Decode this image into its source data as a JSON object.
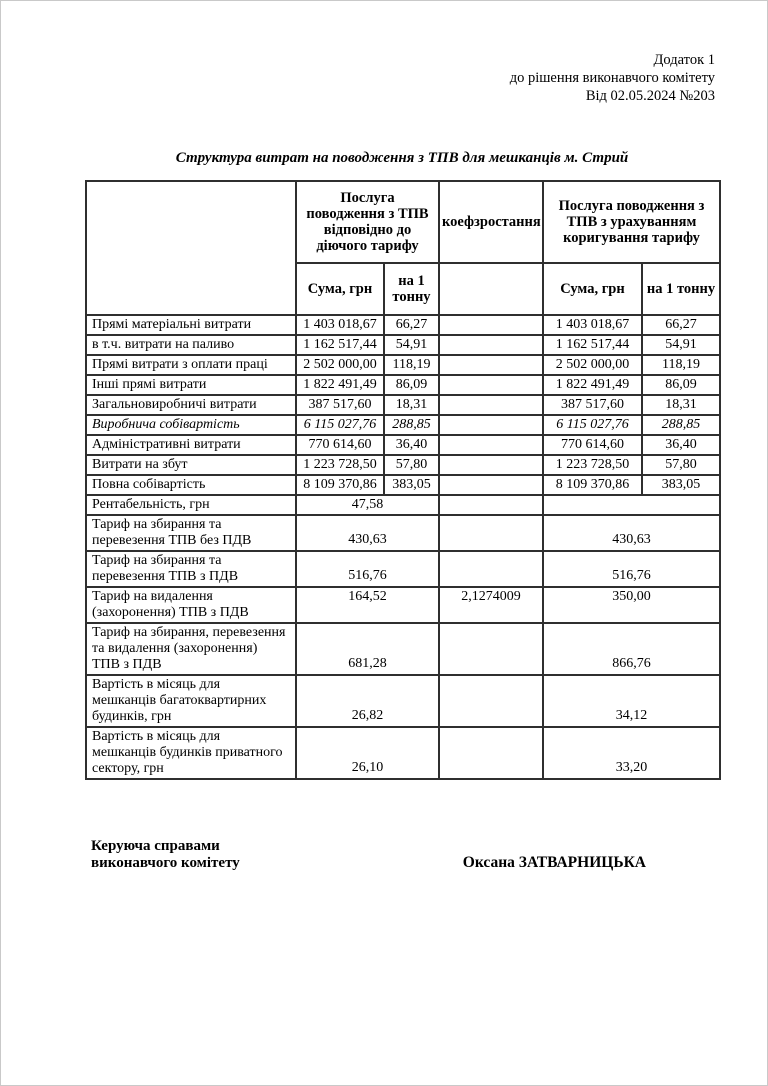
{
  "appendix": {
    "line1": "Додаток 1",
    "line2": "до рішення виконавчого комітету",
    "line3": "Від 02.05.2024 №203"
  },
  "title": "Структура витрат на поводження з ТПВ для мешканців м. Стрий",
  "table": {
    "header": {
      "tariff_current_group": "Послуга\nповодження з ТПВ\nвідповідно до\nдіючого тарифу",
      "coef_growth": "коефзростання",
      "tariff_adjusted_group": "Послуга поводження з\nТПВ з урахуванням\nкоригування тарифу",
      "sum_current": "Сума, грн",
      "per_ton_current": "на 1\nтонну",
      "sum_adjusted": "Сума, грн",
      "per_ton_adjusted": "на 1 тонну"
    },
    "rows": [
      {
        "label": "Прямі матеріальні витрати",
        "merged": false,
        "style": "normal",
        "sum1": "1 403 018,67",
        "ton1": "66,27",
        "coef": "",
        "sum2": "1 403 018,67",
        "ton2": "66,27"
      },
      {
        "label": "в т.ч. витрати на паливо",
        "merged": false,
        "style": "normal",
        "sum1": "1 162 517,44",
        "ton1": "54,91",
        "coef": "",
        "sum2": "1 162 517,44",
        "ton2": "54,91"
      },
      {
        "label": "Прямі витрати з оплати праці",
        "merged": false,
        "style": "normal",
        "sum1": "2 502 000,00",
        "ton1": "118,19",
        "coef": "",
        "sum2": "2 502 000,00",
        "ton2": "118,19"
      },
      {
        "label": "Інші прямі витрати",
        "merged": false,
        "style": "normal",
        "sum1": "1 822 491,49",
        "ton1": "86,09",
        "coef": "",
        "sum2": "1 822 491,49",
        "ton2": "86,09"
      },
      {
        "label": "Загальновиробничі витрати",
        "merged": false,
        "style": "normal",
        "sum1": "387 517,60",
        "ton1": "18,31",
        "coef": "",
        "sum2": "387 517,60",
        "ton2": "18,31"
      },
      {
        "label": "Виробнича собівартість",
        "merged": false,
        "style": "bold-italic",
        "sum1": "6 115 027,76",
        "ton1": "288,85",
        "coef": "",
        "sum2": "6 115 027,76",
        "ton2": "288,85"
      },
      {
        "label": "Адміністративні витрати",
        "merged": false,
        "style": "normal",
        "sum1": "770 614,60",
        "ton1": "36,40",
        "coef": "",
        "sum2": "770 614,60",
        "ton2": "36,40"
      },
      {
        "label": "Витрати на збут",
        "merged": false,
        "style": "normal",
        "sum1": "1 223 728,50",
        "ton1": "57,80",
        "coef": "",
        "sum2": "1 223 728,50",
        "ton2": "57,80"
      },
      {
        "label": "Повна собівартість",
        "merged": false,
        "style": "bold",
        "sum1": "8 109 370,86",
        "ton1": "383,05",
        "coef": "",
        "sum2": "8 109 370,86",
        "ton2": "383,05"
      },
      {
        "label": "Рентабельність, грн",
        "merged": true,
        "style": "normal",
        "value1": "47,58",
        "coef": "",
        "value2": ""
      },
      {
        "label": "Тариф на збирання та\nперевезення ТПВ без ПДВ",
        "merged": true,
        "style": "normal",
        "value1": "430,63",
        "coef": "",
        "value2": "430,63"
      },
      {
        "label": "Тариф на збирання та\nперевезення ТПВ з ПДВ",
        "merged": true,
        "style": "normal",
        "value1": "516,76",
        "coef": "",
        "value2": "516,76"
      },
      {
        "label": "Тариф на видалення\n(захоронення) ТПВ з ПДВ",
        "merged": true,
        "style": "normal",
        "value1": "164,52",
        "coef": "2,1274009",
        "value2": "350,00"
      },
      {
        "label": "Тариф на збирання, перевезення\nта видалення (захоронення)\nТПВ з ПДВ",
        "merged": true,
        "style": "normal",
        "value1": "681,28",
        "coef": "",
        "value2": "866,76"
      },
      {
        "label": "Вартість в місяць для\nмешканців багатоквартирних\nбудинків, грн",
        "merged": true,
        "style": "normal",
        "value1": "26,82",
        "coef": "",
        "value2": "34,12"
      },
      {
        "label": "Вартість в місяць для\nмешканців будинків приватного\nсектору, грн",
        "merged": true,
        "style": "normal",
        "value1": "26,10",
        "coef": "",
        "value2": "33,20"
      }
    ]
  },
  "signature": {
    "role": "Керуюча справами\nвиконавчого комітету",
    "name": "Оксана ЗАТВАРНИЦЬКА"
  }
}
